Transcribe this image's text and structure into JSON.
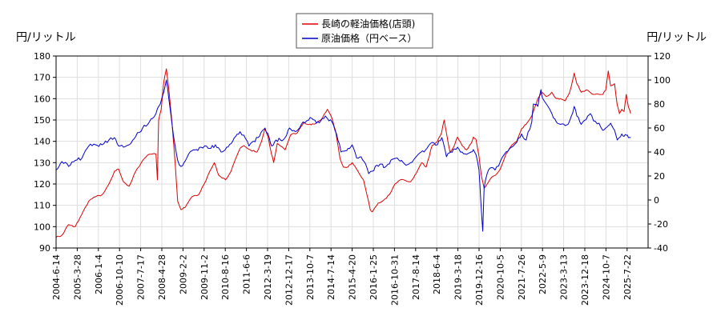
{
  "chart_data": {
    "type": "line",
    "left_axis_label": "円/リットル",
    "right_axis_label": "円/リットル",
    "left_ylim": [
      90,
      180
    ],
    "left_ticks": [
      90,
      100,
      110,
      120,
      130,
      140,
      150,
      160,
      170,
      180
    ],
    "right_ylim": [
      -40,
      120
    ],
    "right_ticks": [
      -40,
      -20,
      0,
      20,
      40,
      60,
      80,
      100,
      120
    ],
    "x_ticks": [
      "2004-6-14",
      "2005-3-28",
      "2006-1-4",
      "2006-10-10",
      "2007-7-17",
      "2008-4-28",
      "2009-2-2",
      "2009-11-2",
      "2010-8-16",
      "2011-6-6",
      "2012-3-19",
      "2012-12-17",
      "2013-10-7",
      "2014-7-14",
      "2015-4-20",
      "2016-1-25",
      "2016-10-31",
      "2017-8-14",
      "2018-6-4",
      "2019-3-18",
      "2019-12-16",
      "2020-10-5",
      "2021-7-26",
      "2022-5-9",
      "2023-3-13",
      "2023-12-18",
      "2024-10-7",
      "2025-7-22"
    ],
    "grid": true,
    "legend_position": "top-center",
    "series": [
      {
        "name": "長崎の軽油価格(店頭)",
        "axis": "left",
        "color": "#dd0000",
        "points": [
          [
            "2004-06-14",
            95
          ],
          [
            "2004-09-01",
            96
          ],
          [
            "2004-12-01",
            101
          ],
          [
            "2005-03-01",
            100
          ],
          [
            "2005-06-01",
            106
          ],
          [
            "2005-09-01",
            112
          ],
          [
            "2005-12-01",
            114
          ],
          [
            "2006-03-01",
            115
          ],
          [
            "2006-06-01",
            120
          ],
          [
            "2006-08-15",
            126
          ],
          [
            "2006-10-10",
            127
          ],
          [
            "2006-12-15",
            121
          ],
          [
            "2007-03-01",
            119
          ],
          [
            "2007-06-01",
            126
          ],
          [
            "2007-09-01",
            131
          ],
          [
            "2007-12-01",
            134
          ],
          [
            "2008-03-01",
            134
          ],
          [
            "2008-03-20",
            122
          ],
          [
            "2008-04-05",
            150
          ],
          [
            "2008-05-10",
            155
          ],
          [
            "2008-06-15",
            168
          ],
          [
            "2008-07-20",
            174
          ],
          [
            "2008-08-20",
            165
          ],
          [
            "2008-10-01",
            150
          ],
          [
            "2008-11-15",
            130
          ],
          [
            "2008-12-20",
            112
          ],
          [
            "2009-02-02",
            108
          ],
          [
            "2009-04-01",
            109
          ],
          [
            "2009-07-01",
            114
          ],
          [
            "2009-10-01",
            115
          ],
          [
            "2009-12-15",
            120
          ],
          [
            "2010-03-01",
            126
          ],
          [
            "2010-05-01",
            130
          ],
          [
            "2010-07-01",
            124
          ],
          [
            "2010-10-01",
            122
          ],
          [
            "2010-12-15",
            126
          ],
          [
            "2011-02-15",
            132
          ],
          [
            "2011-04-20",
            137
          ],
          [
            "2011-06-06",
            138
          ],
          [
            "2011-09-01",
            136
          ],
          [
            "2011-12-01",
            135
          ],
          [
            "2012-02-01",
            140
          ],
          [
            "2012-03-19",
            146
          ],
          [
            "2012-05-01",
            142
          ],
          [
            "2012-06-15",
            134
          ],
          [
            "2012-07-15",
            130
          ],
          [
            "2012-09-01",
            139
          ],
          [
            "2012-12-17",
            136
          ],
          [
            "2013-03-01",
            143
          ],
          [
            "2013-06-01",
            144
          ],
          [
            "2013-09-01",
            149
          ],
          [
            "2013-10-07",
            148
          ],
          [
            "2014-01-15",
            148
          ],
          [
            "2014-04-15",
            150
          ],
          [
            "2014-07-14",
            155
          ],
          [
            "2014-09-01",
            152
          ],
          [
            "2014-11-01",
            145
          ],
          [
            "2015-01-01",
            132
          ],
          [
            "2015-02-15",
            128
          ],
          [
            "2015-04-20",
            128
          ],
          [
            "2015-06-15",
            130
          ],
          [
            "2015-09-01",
            126
          ],
          [
            "2015-11-15",
            122
          ],
          [
            "2016-01-01",
            115
          ],
          [
            "2016-02-15",
            108
          ],
          [
            "2016-03-15",
            107
          ],
          [
            "2016-06-01",
            111
          ],
          [
            "2016-09-01",
            113
          ],
          [
            "2016-10-31",
            115
          ],
          [
            "2017-01-15",
            120
          ],
          [
            "2017-04-01",
            122
          ],
          [
            "2017-08-14",
            121
          ],
          [
            "2017-11-01",
            125
          ],
          [
            "2018-01-15",
            130
          ],
          [
            "2018-03-15",
            128
          ],
          [
            "2018-06-04",
            138
          ],
          [
            "2018-08-15",
            140
          ],
          [
            "2018-10-10",
            144
          ],
          [
            "2018-11-15",
            150
          ],
          [
            "2018-12-20",
            143
          ],
          [
            "2019-02-01",
            135
          ],
          [
            "2019-03-18",
            137
          ],
          [
            "2019-05-15",
            142
          ],
          [
            "2019-07-15",
            138
          ],
          [
            "2019-09-15",
            136
          ],
          [
            "2019-11-15",
            139
          ],
          [
            "2019-12-16",
            142
          ],
          [
            "2020-01-20",
            141
          ],
          [
            "2020-03-01",
            133
          ],
          [
            "2020-04-01",
            124
          ],
          [
            "2020-05-10",
            118
          ],
          [
            "2020-06-20",
            120
          ],
          [
            "2020-08-15",
            123
          ],
          [
            "2020-10-05",
            124
          ],
          [
            "2020-12-15",
            127
          ],
          [
            "2021-03-01",
            134
          ],
          [
            "2021-05-15",
            138
          ],
          [
            "2021-07-26",
            140
          ],
          [
            "2021-10-01",
            146
          ],
          [
            "2021-12-01",
            148
          ],
          [
            "2022-02-15",
            152
          ],
          [
            "2022-05-09",
            160
          ],
          [
            "2022-07-01",
            163
          ],
          [
            "2022-09-01",
            161
          ],
          [
            "2022-11-15",
            163
          ],
          [
            "2023-01-15",
            160
          ],
          [
            "2023-03-13",
            160
          ],
          [
            "2023-05-15",
            159
          ],
          [
            "2023-07-15",
            163
          ],
          [
            "2023-09-15",
            172
          ],
          [
            "2023-10-20",
            167
          ],
          [
            "2023-12-18",
            163
          ],
          [
            "2024-03-15",
            164
          ],
          [
            "2024-06-01",
            162
          ],
          [
            "2024-08-15",
            162
          ],
          [
            "2024-10-07",
            162
          ],
          [
            "2024-11-15",
            164
          ],
          [
            "2024-12-20",
            173
          ],
          [
            "2025-01-20",
            166
          ],
          [
            "2025-03-15",
            167
          ],
          [
            "2025-04-20",
            157
          ],
          [
            "2025-05-20",
            153
          ],
          [
            "2025-06-20",
            155
          ],
          [
            "2025-07-22",
            154
          ],
          [
            "2025-08-20",
            162
          ],
          [
            "2025-09-20",
            156
          ],
          [
            "2025-10-20",
            153
          ]
        ]
      },
      {
        "name": "原油価格（円ベース）",
        "axis": "right",
        "color": "#0000cc",
        "points": [
          [
            "2004-06-14",
            25
          ],
          [
            "2004-09-01",
            32
          ],
          [
            "2004-12-01",
            28
          ],
          [
            "2005-03-01",
            33
          ],
          [
            "2005-06-01",
            35
          ],
          [
            "2005-09-01",
            45
          ],
          [
            "2005-12-01",
            46
          ],
          [
            "2006-03-01",
            46
          ],
          [
            "2006-06-01",
            50
          ],
          [
            "2006-08-15",
            52
          ],
          [
            "2006-10-10",
            45
          ],
          [
            "2006-12-15",
            44
          ],
          [
            "2007-03-01",
            46
          ],
          [
            "2007-06-01",
            53
          ],
          [
            "2007-09-01",
            60
          ],
          [
            "2007-12-01",
            65
          ],
          [
            "2008-03-01",
            72
          ],
          [
            "2008-04-28",
            80
          ],
          [
            "2008-06-15",
            90
          ],
          [
            "2008-07-20",
            100
          ],
          [
            "2008-08-20",
            85
          ],
          [
            "2008-10-01",
            65
          ],
          [
            "2008-11-15",
            45
          ],
          [
            "2008-12-20",
            33
          ],
          [
            "2009-02-02",
            28
          ],
          [
            "2009-03-15",
            31
          ],
          [
            "2009-05-15",
            38
          ],
          [
            "2009-07-01",
            41
          ],
          [
            "2009-09-01",
            42
          ],
          [
            "2009-11-02",
            44
          ],
          [
            "2010-01-15",
            45
          ],
          [
            "2010-03-15",
            43
          ],
          [
            "2010-05-15",
            46
          ],
          [
            "2010-07-15",
            42
          ],
          [
            "2010-08-16",
            40
          ],
          [
            "2010-10-15",
            44
          ],
          [
            "2010-12-15",
            47
          ],
          [
            "2011-02-15",
            53
          ],
          [
            "2011-04-15",
            57
          ],
          [
            "2011-06-06",
            54
          ],
          [
            "2011-08-15",
            45
          ],
          [
            "2011-10-15",
            49
          ],
          [
            "2011-12-15",
            52
          ],
          [
            "2012-02-15",
            58
          ],
          [
            "2012-03-19",
            60
          ],
          [
            "2012-05-15",
            52
          ],
          [
            "2012-06-20",
            45
          ],
          [
            "2012-08-15",
            50
          ],
          [
            "2012-10-15",
            50
          ],
          [
            "2012-12-17",
            52
          ],
          [
            "2013-02-15",
            60
          ],
          [
            "2013-04-15",
            58
          ],
          [
            "2013-06-15",
            59
          ],
          [
            "2013-08-15",
            65
          ],
          [
            "2013-10-07",
            66
          ],
          [
            "2013-12-15",
            68
          ],
          [
            "2014-02-15",
            64
          ],
          [
            "2014-04-15",
            66
          ],
          [
            "2014-06-15",
            70
          ],
          [
            "2014-07-14",
            68
          ],
          [
            "2014-09-15",
            65
          ],
          [
            "2014-11-15",
            55
          ],
          [
            "2015-01-15",
            40
          ],
          [
            "2015-03-15",
            41
          ],
          [
            "2015-04-20",
            43
          ],
          [
            "2015-06-15",
            46
          ],
          [
            "2015-08-15",
            35
          ],
          [
            "2015-10-15",
            36
          ],
          [
            "2015-12-15",
            30
          ],
          [
            "2016-01-25",
            22
          ],
          [
            "2016-03-15",
            24
          ],
          [
            "2016-05-15",
            29
          ],
          [
            "2016-07-15",
            30
          ],
          [
            "2016-08-15",
            27
          ],
          [
            "2016-10-31",
            30
          ],
          [
            "2016-12-15",
            34
          ],
          [
            "2017-02-15",
            35
          ],
          [
            "2017-04-15",
            33
          ],
          [
            "2017-06-15",
            29
          ],
          [
            "2017-08-14",
            31
          ],
          [
            "2017-10-15",
            35
          ],
          [
            "2017-12-15",
            39
          ],
          [
            "2018-02-15",
            40
          ],
          [
            "2018-04-15",
            45
          ],
          [
            "2018-06-04",
            48
          ],
          [
            "2018-08-15",
            46
          ],
          [
            "2018-10-15",
            52
          ],
          [
            "2018-12-15",
            36
          ],
          [
            "2019-02-15",
            40
          ],
          [
            "2019-03-18",
            42
          ],
          [
            "2019-05-15",
            44
          ],
          [
            "2019-07-15",
            40
          ],
          [
            "2019-09-15",
            38
          ],
          [
            "2019-11-15",
            40
          ],
          [
            "2019-12-16",
            42
          ],
          [
            "2020-01-20",
            38
          ],
          [
            "2020-03-01",
            25
          ],
          [
            "2020-03-25",
            0
          ],
          [
            "2020-04-21",
            -26
          ],
          [
            "2020-05-10",
            10
          ],
          [
            "2020-06-20",
            22
          ],
          [
            "2020-08-15",
            27
          ],
          [
            "2020-10-05",
            25
          ],
          [
            "2020-12-15",
            32
          ],
          [
            "2021-03-01",
            40
          ],
          [
            "2021-05-15",
            44
          ],
          [
            "2021-07-26",
            48
          ],
          [
            "2021-10-01",
            55
          ],
          [
            "2021-12-01",
            50
          ],
          [
            "2022-02-15",
            65
          ],
          [
            "2022-03-10",
            80
          ],
          [
            "2022-05-09",
            78
          ],
          [
            "2022-06-20",
            92
          ],
          [
            "2022-07-10",
            85
          ],
          [
            "2022-09-01",
            80
          ],
          [
            "2022-11-15",
            72
          ],
          [
            "2023-01-15",
            65
          ],
          [
            "2023-03-13",
            63
          ],
          [
            "2023-05-15",
            62
          ],
          [
            "2023-07-15",
            66
          ],
          [
            "2023-09-15",
            78
          ],
          [
            "2023-10-20",
            70
          ],
          [
            "2023-12-18",
            63
          ],
          [
            "2024-03-15",
            70
          ],
          [
            "2024-04-20",
            72
          ],
          [
            "2024-06-01",
            66
          ],
          [
            "2024-08-15",
            64
          ],
          [
            "2024-10-07",
            58
          ],
          [
            "2024-11-15",
            60
          ],
          [
            "2024-12-20",
            62
          ],
          [
            "2025-01-20",
            64
          ],
          [
            "2025-03-15",
            58
          ],
          [
            "2025-04-20",
            50
          ],
          [
            "2025-05-20",
            52
          ],
          [
            "2025-06-20",
            55
          ],
          [
            "2025-07-22",
            53
          ],
          [
            "2025-08-20",
            54
          ],
          [
            "2025-09-20",
            52
          ],
          [
            "2025-10-20",
            52
          ]
        ]
      }
    ]
  }
}
